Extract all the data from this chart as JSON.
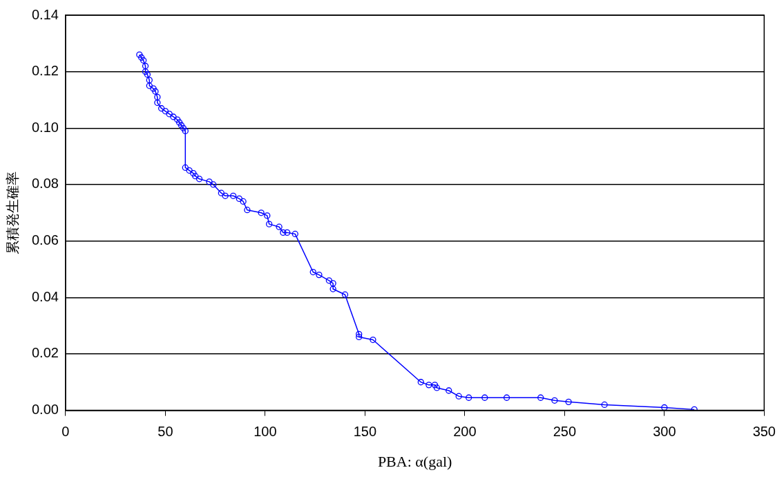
{
  "chart_data": {
    "type": "line",
    "xlabel": "PBA: α(gal)",
    "ylabel": "累積発生確率",
    "x": [
      37,
      38,
      39,
      40,
      40,
      41,
      42,
      42,
      44,
      45,
      46,
      46,
      48,
      50,
      52,
      54,
      56,
      57,
      58,
      59,
      60,
      60,
      62,
      64,
      65,
      67,
      72,
      74,
      78,
      80,
      84,
      87,
      89,
      91,
      98,
      101,
      102,
      107,
      109,
      111,
      115,
      124,
      127,
      132,
      134,
      134,
      140,
      147,
      147,
      154,
      178,
      182,
      185,
      186,
      192,
      197,
      202,
      210,
      221,
      238,
      245,
      252,
      270,
      300,
      315
    ],
    "series": [
      {
        "color": "#0000ff",
        "values": [
          0.126,
          0.125,
          0.124,
          0.122,
          0.12,
          0.119,
          0.117,
          0.115,
          0.114,
          0.113,
          0.111,
          0.109,
          0.107,
          0.106,
          0.105,
          0.104,
          0.103,
          0.102,
          0.101,
          0.1,
          0.099,
          0.086,
          0.085,
          0.084,
          0.083,
          0.082,
          0.081,
          0.08,
          0.077,
          0.076,
          0.076,
          0.075,
          0.074,
          0.071,
          0.07,
          0.069,
          0.066,
          0.065,
          0.063,
          0.063,
          0.0625,
          0.049,
          0.048,
          0.046,
          0.045,
          0.043,
          0.041,
          0.027,
          0.026,
          0.025,
          0.01,
          0.009,
          0.009,
          0.008,
          0.007,
          0.005,
          0.0045,
          0.0045,
          0.0045,
          0.0045,
          0.0035,
          0.003,
          0.002,
          0.001,
          0.0003
        ]
      }
    ],
    "xlim": [
      0,
      350
    ],
    "xticks": [
      0,
      50,
      100,
      150,
      200,
      250,
      300,
      350
    ],
    "ylim": [
      0,
      0.14
    ],
    "yticks": [
      {
        "value": 0,
        "label": "0.00"
      },
      {
        "value": 0.02,
        "label": "0.02"
      },
      {
        "value": 0.04,
        "label": "0.04"
      },
      {
        "value": 0.06,
        "label": "0.06"
      },
      {
        "value": 0.08,
        "label": "0.08"
      },
      {
        "value": 0.1,
        "label": "0.10"
      },
      {
        "value": 0.12,
        "label": "0.12"
      },
      {
        "value": 0.14,
        "label": "0.14"
      }
    ],
    "grid": "y",
    "legend": false,
    "marker": "circle",
    "line_style": "solid"
  }
}
